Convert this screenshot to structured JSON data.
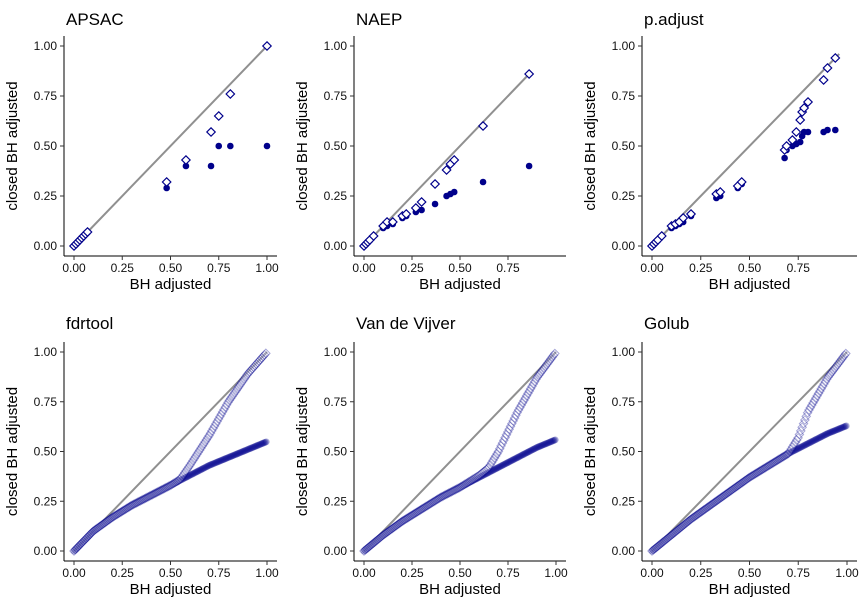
{
  "chart_data": [
    {
      "type": "scatter",
      "title": "APSAC",
      "xlabel": "BH adjusted",
      "ylabel": "closed BH adjusted",
      "xlim": [
        0,
        1
      ],
      "ylim": [
        0,
        1
      ],
      "xticks": [
        "0.00",
        "0.25",
        "0.50",
        "0.75",
        "1.00"
      ],
      "yticks": [
        "0.00",
        "0.25",
        "0.50",
        "0.75",
        "1.00"
      ],
      "series": [
        {
          "marker": "circle-filled",
          "color": "#00008b",
          "x": [
            0.0,
            0.01,
            0.02,
            0.03,
            0.04,
            0.05,
            0.06,
            0.07,
            0.48,
            0.58,
            0.71,
            0.75,
            0.81,
            1.0
          ],
          "y": [
            0.0,
            0.01,
            0.02,
            0.03,
            0.04,
            0.05,
            0.06,
            0.07,
            0.29,
            0.4,
            0.4,
            0.5,
            0.5,
            0.5
          ]
        },
        {
          "marker": "diamond-open",
          "color": "#00008b",
          "x": [
            0.0,
            0.01,
            0.02,
            0.03,
            0.04,
            0.05,
            0.06,
            0.07,
            0.48,
            0.58,
            0.71,
            0.75,
            0.81,
            1.0
          ],
          "y": [
            0.0,
            0.01,
            0.02,
            0.03,
            0.04,
            0.05,
            0.06,
            0.07,
            0.32,
            0.43,
            0.57,
            0.65,
            0.76,
            1.0
          ]
        }
      ],
      "reference_line": "identity",
      "grid": false
    },
    {
      "type": "scatter",
      "title": "NAEP",
      "xlabel": "BH adjusted",
      "ylabel": "closed BH adjusted",
      "xlim": [
        0,
        0.87
      ],
      "ylim": [
        0,
        1
      ],
      "xticks": [
        "0.00",
        "0.25",
        "0.50",
        "0.75"
      ],
      "yticks": [
        "0.00",
        "0.25",
        "0.50",
        "0.75",
        "1.00"
      ],
      "series": [
        {
          "marker": "circle-filled",
          "color": "#00008b",
          "x": [
            0.0,
            0.01,
            0.02,
            0.03,
            0.05,
            0.1,
            0.12,
            0.15,
            0.2,
            0.22,
            0.27,
            0.3,
            0.37,
            0.43,
            0.45,
            0.47,
            0.62,
            0.86
          ],
          "y": [
            0.0,
            0.01,
            0.02,
            0.03,
            0.05,
            0.09,
            0.1,
            0.11,
            0.14,
            0.15,
            0.17,
            0.18,
            0.21,
            0.25,
            0.26,
            0.27,
            0.32,
            0.4
          ]
        },
        {
          "marker": "diamond-open",
          "color": "#00008b",
          "x": [
            0.0,
            0.01,
            0.02,
            0.03,
            0.05,
            0.1,
            0.12,
            0.15,
            0.2,
            0.22,
            0.27,
            0.3,
            0.37,
            0.43,
            0.45,
            0.47,
            0.62,
            0.86
          ],
          "y": [
            0.0,
            0.01,
            0.02,
            0.03,
            0.05,
            0.1,
            0.12,
            0.12,
            0.15,
            0.16,
            0.19,
            0.22,
            0.31,
            0.38,
            0.41,
            0.43,
            0.6,
            0.86
          ]
        }
      ],
      "reference_line": "identity",
      "grid": false
    },
    {
      "type": "scatter",
      "title": "p.adjust",
      "xlabel": "BH adjusted",
      "ylabel": "closed BH adjusted",
      "xlim": [
        0,
        0.96
      ],
      "ylim": [
        0,
        1
      ],
      "xticks": [
        "0.00",
        "0.25",
        "0.50",
        "0.75"
      ],
      "yticks": [
        "0.00",
        "0.25",
        "0.50",
        "0.75",
        "1.00"
      ],
      "series": [
        {
          "marker": "circle-filled",
          "color": "#00008b",
          "x": [
            0.0,
            0.01,
            0.02,
            0.03,
            0.05,
            0.1,
            0.12,
            0.14,
            0.16,
            0.2,
            0.33,
            0.35,
            0.44,
            0.46,
            0.68,
            0.69,
            0.72,
            0.74,
            0.76,
            0.77,
            0.78,
            0.8,
            0.88,
            0.9,
            0.94
          ],
          "y": [
            0.0,
            0.01,
            0.02,
            0.03,
            0.05,
            0.09,
            0.1,
            0.11,
            0.12,
            0.15,
            0.24,
            0.25,
            0.29,
            0.31,
            0.44,
            0.48,
            0.5,
            0.51,
            0.52,
            0.55,
            0.57,
            0.57,
            0.57,
            0.58,
            0.58
          ]
        },
        {
          "marker": "diamond-open",
          "color": "#00008b",
          "x": [
            0.0,
            0.01,
            0.02,
            0.03,
            0.05,
            0.1,
            0.12,
            0.14,
            0.16,
            0.2,
            0.33,
            0.35,
            0.44,
            0.46,
            0.68,
            0.69,
            0.72,
            0.74,
            0.76,
            0.77,
            0.78,
            0.8,
            0.88,
            0.9,
            0.94
          ],
          "y": [
            0.0,
            0.01,
            0.02,
            0.03,
            0.05,
            0.1,
            0.11,
            0.12,
            0.14,
            0.16,
            0.26,
            0.27,
            0.3,
            0.32,
            0.48,
            0.5,
            0.53,
            0.57,
            0.63,
            0.67,
            0.69,
            0.72,
            0.83,
            0.89,
            0.94
          ]
        }
      ],
      "reference_line": "identity",
      "grid": false
    },
    {
      "type": "scatter",
      "title": "fdrtool",
      "xlabel": "BH adjusted",
      "ylabel": "closed BH adjusted",
      "xlim": [
        0,
        1
      ],
      "ylim": [
        0,
        1
      ],
      "xticks": [
        "0.00",
        "0.25",
        "0.50",
        "0.75",
        "1.00"
      ],
      "yticks": [
        "0.00",
        "0.25",
        "0.50",
        "0.75",
        "1.00"
      ],
      "series": [
        {
          "marker": "circle-filled-dense",
          "color": "#00008b",
          "x": [
            0.0,
            0.1,
            0.2,
            0.3,
            0.4,
            0.5,
            0.6,
            0.7,
            0.8,
            0.9,
            1.0
          ],
          "y": [
            0.0,
            0.1,
            0.17,
            0.23,
            0.28,
            0.33,
            0.38,
            0.43,
            0.47,
            0.51,
            0.55
          ]
        },
        {
          "marker": "diamond-open-dense",
          "color": "#00008b",
          "x": [
            0.0,
            0.1,
            0.2,
            0.3,
            0.4,
            0.5,
            0.55,
            0.6,
            0.7,
            0.8,
            0.9,
            1.0
          ],
          "y": [
            0.0,
            0.1,
            0.17,
            0.23,
            0.28,
            0.33,
            0.36,
            0.43,
            0.58,
            0.75,
            0.89,
            1.0
          ]
        }
      ],
      "reference_line": "identity",
      "grid": false
    },
    {
      "type": "scatter",
      "title": "Van de Vijver",
      "xlabel": "BH adjusted",
      "ylabel": "closed BH adjusted",
      "xlim": [
        0,
        1
      ],
      "ylim": [
        0,
        1
      ],
      "xticks": [
        "0.00",
        "0.25",
        "0.50",
        "0.75",
        "1.00"
      ],
      "yticks": [
        "0.00",
        "0.25",
        "0.50",
        "0.75",
        "1.00"
      ],
      "series": [
        {
          "marker": "circle-filled-dense",
          "color": "#00008b",
          "x": [
            0.0,
            0.1,
            0.2,
            0.3,
            0.4,
            0.5,
            0.6,
            0.7,
            0.8,
            0.9,
            1.0
          ],
          "y": [
            0.0,
            0.08,
            0.15,
            0.21,
            0.27,
            0.32,
            0.37,
            0.42,
            0.47,
            0.52,
            0.56
          ]
        },
        {
          "marker": "diamond-open-dense",
          "color": "#00008b",
          "x": [
            0.0,
            0.1,
            0.2,
            0.3,
            0.4,
            0.5,
            0.6,
            0.65,
            0.7,
            0.8,
            0.9,
            1.0
          ],
          "y": [
            0.0,
            0.08,
            0.15,
            0.21,
            0.27,
            0.32,
            0.38,
            0.42,
            0.5,
            0.7,
            0.87,
            1.0
          ]
        }
      ],
      "reference_line": "identity",
      "grid": false
    },
    {
      "type": "scatter",
      "title": "Golub",
      "xlabel": "BH adjusted",
      "ylabel": "closed BH adjusted",
      "xlim": [
        0,
        1
      ],
      "ylim": [
        0,
        1
      ],
      "xticks": [
        "0.00",
        "0.25",
        "0.50",
        "0.75",
        "1.00"
      ],
      "yticks": [
        "0.00",
        "0.25",
        "0.50",
        "0.75",
        "1.00"
      ],
      "series": [
        {
          "marker": "circle-filled-dense",
          "color": "#00008b",
          "x": [
            0.0,
            0.1,
            0.2,
            0.3,
            0.4,
            0.5,
            0.6,
            0.7,
            0.8,
            0.9,
            1.0
          ],
          "y": [
            0.0,
            0.08,
            0.16,
            0.23,
            0.3,
            0.37,
            0.43,
            0.49,
            0.54,
            0.59,
            0.63
          ]
        },
        {
          "marker": "diamond-open-dense",
          "color": "#00008b",
          "x": [
            0.0,
            0.1,
            0.2,
            0.3,
            0.4,
            0.5,
            0.6,
            0.7,
            0.75,
            0.8,
            0.9,
            1.0
          ],
          "y": [
            0.0,
            0.08,
            0.16,
            0.23,
            0.3,
            0.37,
            0.43,
            0.49,
            0.57,
            0.7,
            0.87,
            1.0
          ]
        }
      ],
      "reference_line": "identity",
      "grid": false
    }
  ]
}
